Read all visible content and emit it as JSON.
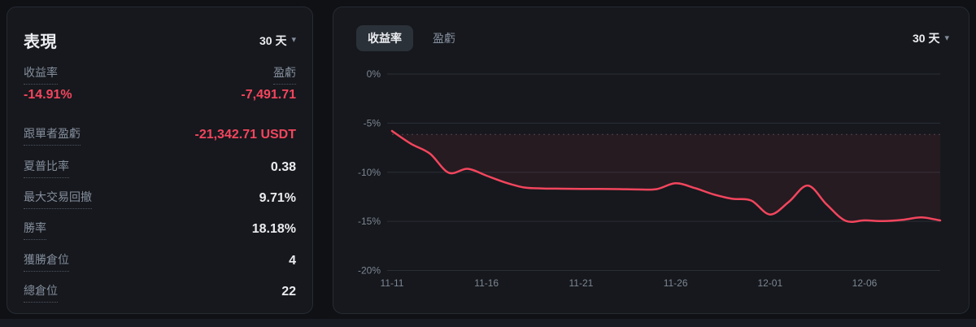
{
  "left_panel": {
    "title": "表現",
    "range_selector": "30 天",
    "caret": "▾",
    "summary": {
      "roi_label": "收益率",
      "roi_value": "-14.91%",
      "pnl_label": "盈虧",
      "pnl_value": "-7,491.71"
    },
    "rows": [
      {
        "label": "跟單者盈虧",
        "value": "-21,342.71 USDT"
      },
      {
        "label": "夏普比率",
        "value": "0.38"
      },
      {
        "label": "最大交易回撤",
        "value": "9.71%"
      },
      {
        "label": "勝率",
        "value": "18.18%"
      },
      {
        "label": "獲勝倉位",
        "value": "4"
      },
      {
        "label": "總倉位",
        "value": "22"
      }
    ]
  },
  "chart_panel": {
    "tabs": [
      {
        "label": "收益率"
      },
      {
        "label": "盈虧"
      }
    ],
    "range_selector": "30 天",
    "caret": "▾"
  },
  "chart_data": {
    "type": "line",
    "title": "收益率 30 天",
    "x": [
      "11-11",
      "11-12",
      "11-13",
      "11-14",
      "11-15",
      "11-16",
      "11-17",
      "11-18",
      "11-19",
      "11-20",
      "11-21",
      "11-22",
      "11-23",
      "11-24",
      "11-25",
      "11-26",
      "11-27",
      "11-28",
      "11-29",
      "11-30",
      "12-01",
      "12-02",
      "12-03",
      "12-04",
      "12-05",
      "12-06",
      "12-07",
      "12-08",
      "12-09",
      "12-10"
    ],
    "series": [
      {
        "name": "收益率",
        "values": [
          -5.8,
          -7.1,
          -8.1,
          -10.05,
          -9.65,
          -10.35,
          -11.05,
          -11.55,
          -11.65,
          -11.68,
          -11.7,
          -11.7,
          -11.72,
          -11.75,
          -11.72,
          -11.12,
          -11.6,
          -12.25,
          -12.7,
          -12.88,
          -14.3,
          -13.0,
          -11.35,
          -13.3,
          -14.95,
          -14.9,
          -14.97,
          -14.85,
          -14.6,
          -14.91
        ]
      }
    ],
    "ylim": [
      -20,
      0
    ],
    "yticks": [
      0,
      -5,
      -10,
      -15,
      -20
    ],
    "ytick_labels": [
      "0%",
      "-5%",
      "-10%",
      "-15%",
      "-20%"
    ],
    "xtick_indices": [
      0,
      5,
      10,
      15,
      20,
      25
    ],
    "xtick_labels": [
      "11-11",
      "11-16",
      "11-21",
      "11-26",
      "12-01",
      "12-06"
    ],
    "grid": true,
    "legend": "none",
    "line_color": "#f3455d",
    "reference_line": -6.15
  },
  "colors": {
    "accent_red": "#f3455d",
    "text_primary": "#eaecef",
    "text_secondary": "#848e9c",
    "panel_bg": "#16181d",
    "page_bg": "#0f1115",
    "pill_bg": "#2b3139",
    "grid_line": "#2a2f37"
  }
}
